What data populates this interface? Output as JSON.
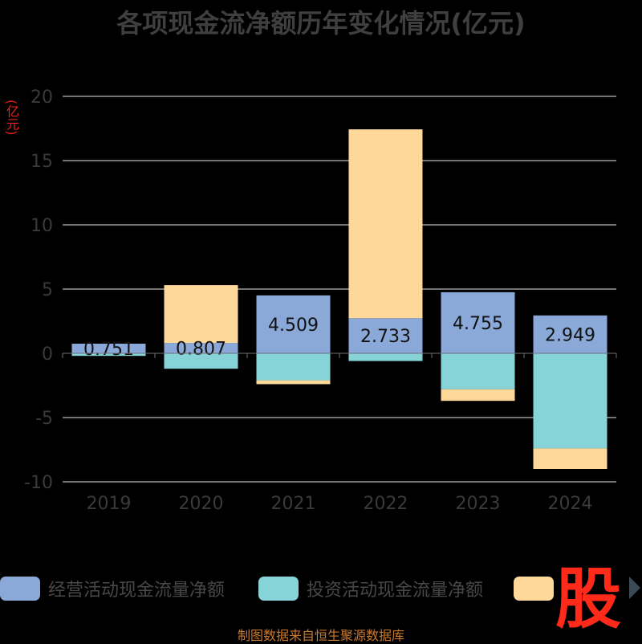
{
  "header": {
    "title": "各项现金流净额历年变化情况(亿元)",
    "unit": "(亿元)"
  },
  "chart_data": {
    "type": "bar",
    "stacked": true,
    "categories": [
      "2019",
      "2020",
      "2021",
      "2022",
      "2023",
      "2024"
    ],
    "series": [
      {
        "name": "经营活动现金流量净额",
        "color": "#8aa9d9",
        "values": [
          0.751,
          0.807,
          4.509,
          2.733,
          4.755,
          2.949
        ],
        "labels": [
          "0.751",
          "0.807",
          "4.509",
          "2.733",
          "4.755",
          "2.949"
        ]
      },
      {
        "name": "投资活动现金流量净额",
        "color": "#86d4d8",
        "values": [
          -0.2,
          -1.2,
          -2.1,
          -0.6,
          -2.8,
          -7.4
        ]
      },
      {
        "name": "",
        "color": "#fdd898",
        "values": [
          0,
          4.5,
          -0.3,
          14.7,
          -0.9,
          -1.6
        ]
      }
    ],
    "ylim": [
      -10,
      20
    ],
    "yticks": [
      "20",
      "15",
      "10",
      "5",
      "0",
      "-5",
      "-10"
    ],
    "grid": true,
    "legend_position": "bottom"
  },
  "legend": {
    "items": [
      "经营活动现金流量净额",
      "投资活动现金流量净额",
      ""
    ]
  },
  "logo": {
    "text": "股"
  },
  "footer": {
    "source": "制图数据来自恒生聚源数据库"
  }
}
